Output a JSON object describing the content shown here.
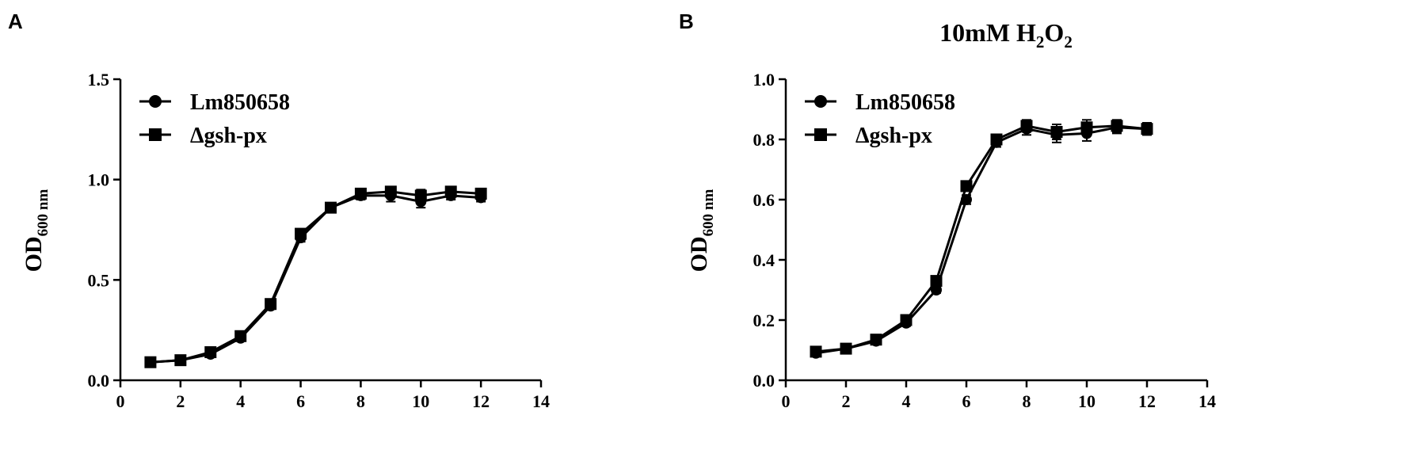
{
  "chart_data": [
    {
      "panel": "A",
      "type": "line",
      "title": "",
      "xlabel": "",
      "ylabel": "OD",
      "ylabel_sub": "600 nm",
      "xlim": [
        0,
        14
      ],
      "ylim": [
        0,
        1.5
      ],
      "xticks": [
        "0",
        "2",
        "4",
        "6",
        "8",
        "10",
        "12",
        "14"
      ],
      "yticks": [
        "0.0",
        "0.5",
        "1.0",
        "1.5"
      ],
      "legend": "top-left",
      "grid": false,
      "x": [
        1,
        2,
        3,
        4,
        5,
        6,
        7,
        8,
        9,
        10,
        11,
        12
      ],
      "series": [
        {
          "name": "Lm850658",
          "marker": "circle",
          "values": [
            0.09,
            0.1,
            0.13,
            0.21,
            0.37,
            0.71,
            0.86,
            0.92,
            0.92,
            0.89,
            0.92,
            0.91
          ],
          "errors": [
            0.005,
            0.005,
            0.01,
            0.01,
            0.015,
            0.02,
            0.015,
            0.02,
            0.03,
            0.03,
            0.02,
            0.02
          ]
        },
        {
          "name": "Δgsh-px",
          "marker": "square",
          "values": [
            0.09,
            0.1,
            0.14,
            0.22,
            0.38,
            0.73,
            0.86,
            0.93,
            0.94,
            0.92,
            0.94,
            0.93
          ],
          "errors": [
            0.005,
            0.005,
            0.01,
            0.01,
            0.015,
            0.02,
            0.015,
            0.02,
            0.02,
            0.03,
            0.02,
            0.02
          ]
        }
      ]
    },
    {
      "panel": "B",
      "type": "line",
      "title": "10mM H",
      "title_sub1": "2",
      "title_mid": "O",
      "title_sub2": "2",
      "xlabel": "",
      "ylabel": "OD",
      "ylabel_sub": "600 nm",
      "xlim": [
        0,
        14
      ],
      "ylim": [
        0,
        1.0
      ],
      "xticks": [
        "0",
        "2",
        "4",
        "6",
        "8",
        "10",
        "12",
        "14"
      ],
      "yticks": [
        "0.0",
        "0.2",
        "0.4",
        "0.6",
        "0.8",
        "1.0"
      ],
      "legend": "top-left",
      "grid": false,
      "x": [
        1,
        2,
        3,
        4,
        5,
        6,
        7,
        8,
        9,
        10,
        11,
        12
      ],
      "series": [
        {
          "name": "Lm850658",
          "marker": "circle",
          "values": [
            0.09,
            0.105,
            0.13,
            0.19,
            0.3,
            0.6,
            0.79,
            0.835,
            0.815,
            0.82,
            0.84,
            0.835
          ],
          "errors": [
            0.005,
            0.005,
            0.008,
            0.01,
            0.01,
            0.015,
            0.015,
            0.02,
            0.025,
            0.025,
            0.02,
            0.02
          ]
        },
        {
          "name": "Δgsh-px",
          "marker": "square",
          "values": [
            0.095,
            0.105,
            0.135,
            0.2,
            0.33,
            0.645,
            0.8,
            0.845,
            0.825,
            0.84,
            0.845,
            0.835
          ],
          "errors": [
            0.005,
            0.005,
            0.008,
            0.01,
            0.01,
            0.015,
            0.015,
            0.02,
            0.025,
            0.025,
            0.02,
            0.02
          ]
        }
      ]
    }
  ]
}
